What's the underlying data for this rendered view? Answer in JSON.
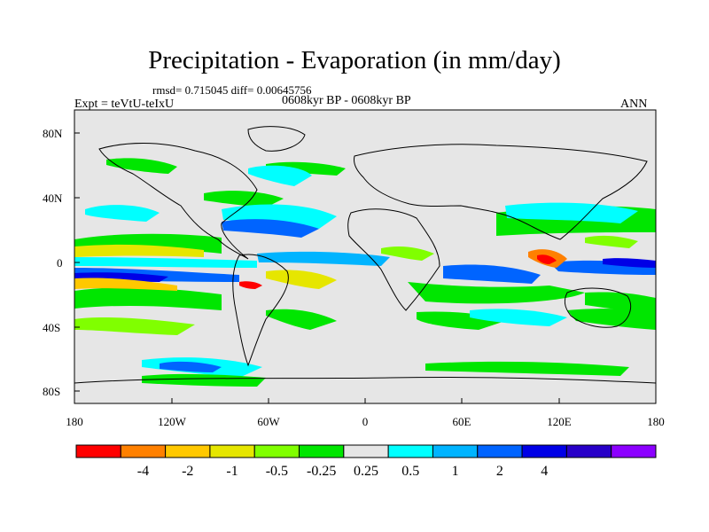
{
  "title": "Precipitation - Evaporation (in mm/day)",
  "stats": "rmsd= 0.715045 diff= 0.00645756",
  "expt": "Expt = teVtU-teIxU",
  "period": "0608kyr BP - 0608kyr BP",
  "season": "ANN",
  "lat_ticks": [
    "80N",
    "40N",
    "0",
    "40S",
    "80S"
  ],
  "lon_ticks": [
    "180",
    "120W",
    "60W",
    "0",
    "60E",
    "120E",
    "180"
  ],
  "colorbar": {
    "colors": [
      "#ff0000",
      "#ff8000",
      "#ffc800",
      "#e6e600",
      "#80ff00",
      "#00e600",
      "#e6e6e6",
      "#00ffff",
      "#00b4ff",
      "#0064ff",
      "#0000e6",
      "#2800c8",
      "#8c00ff"
    ],
    "labels": [
      "-4",
      "-2",
      "-1",
      "-0.5",
      "-0.25",
      "0.25",
      "0.5",
      "1",
      "2",
      "4"
    ]
  }
}
